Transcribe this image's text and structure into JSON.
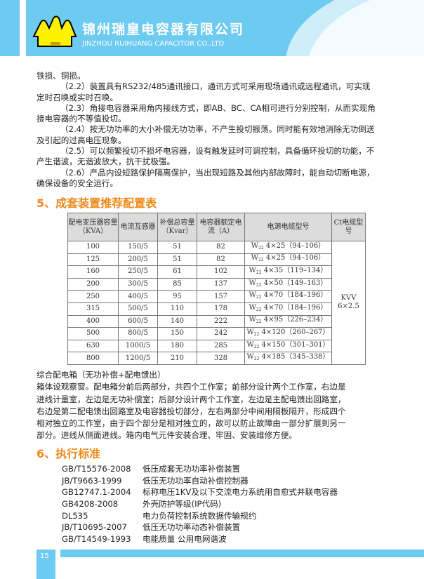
{
  "header": {
    "company_cn": "锦州瑞皇电容器有限公司",
    "company_en": "JINZHOU RUIHUANG CAPACITOR CO.,LTD",
    "brand_color": "#6dcbf1"
  },
  "intro": [
    "铁损、铜损。",
    "（2.2）装置具有RS232/485通讯接口，通讯方式可采用现场通讯或远程通讯，可实现",
    "定时召唤或实时召唤。",
    "（2.3）角接电容器采用角内接线方式，即AB、BC、CA相可进行分别控制，从而实现角",
    "接电容器的不等值投切。",
    "（2.4）按无功功率的大小补偿无功功率，不产生投切振荡。同时能有效地消除无功倒送",
    "及引起的过高电压现象。",
    "（2.5）可以频繁投切不损坏电容器，设有触发延时可调控制，具备循环投切的功能，不",
    "产生谐波，无谐波放大，抗干扰极强。",
    "（2.6）产品内设短路保护隔离保护，当出现短路及其他内部故障时，能自动切断电源，",
    "确保设备的安全运行。"
  ],
  "section5": {
    "title": "5、成套装置推荐配置表",
    "accent": "#f08a1c"
  },
  "table": {
    "headers": [
      "配电变压器容量（KVA）",
      "电流互感器",
      "补偿总容量（Kvar）",
      "电容器额定电流（A）",
      "电源电缆型号",
      "Ct电缆型号"
    ],
    "rows": [
      [
        "100",
        "150/5",
        "51",
        "82",
        "4×25（94–106）"
      ],
      [
        "125",
        "200/5",
        "51",
        "82",
        "4×25（94–106）"
      ],
      [
        "160",
        "250/5",
        "61",
        "102",
        "4×35（119–134）"
      ],
      [
        "200",
        "300/5",
        "85",
        "137",
        "4×50（149–163）"
      ],
      [
        "250",
        "400/5",
        "95",
        "157",
        "4×70（184–196）"
      ],
      [
        "315",
        "500/5",
        "110",
        "178",
        "4×70（184–196）"
      ],
      [
        "400",
        "600/5",
        "140",
        "222",
        "4×95（226–234）"
      ],
      [
        "500",
        "800/5",
        "150",
        "242",
        "4×120（260–267）"
      ],
      [
        "630",
        "1000/5",
        "180",
        "285",
        "4×150（301–301）"
      ],
      [
        "800",
        "1200/5",
        "210",
        "328",
        "4×185（345–338）"
      ]
    ],
    "cable_prefix": "W",
    "cable_sub": "22",
    "ct_cable": [
      "KVV",
      "6×2.5"
    ]
  },
  "cabinet": [
    "综合配电箱（无功补偿+配电馈出）",
    "箱体设观察窗。配电箱分前后两部分，共四个工作室；前部分设计两个工作室，右边是",
    "进线计量室，左边是无功补偿室；后部分设计两个工作室，左边是主配电馈出回路室，",
    "右边是第二配电馈出回路室及电容器投切部分，左右两部分中间用隔板隔开，形成四个",
    "相对独立的工作室，由于四个部分是相对独立的，故可以防止故障由一部分扩展到另一",
    "部分。进线从侧面进线。箱内电气元件安装合理、牢固、安装维修方便。"
  ],
  "section6": {
    "title": "6、执行标准"
  },
  "standards": [
    {
      "code": "GB/T15576-2008",
      "name": "低压成套无功功率补偿装置"
    },
    {
      "code": "JB/T9663-1999",
      "name": "低压无功功率自动补偿控制器"
    },
    {
      "code": "GB12747.1-2004",
      "name": "标称电压1KV及以下交流电力系统用自愈式并联电容器"
    },
    {
      "code": "GB4208-2008",
      "name": "外壳防护等级(IP代码)"
    },
    {
      "code": "DL535",
      "name": "电力负荷控制系统数据传输规约"
    },
    {
      "code": "JB/T10695-2007",
      "name": "低压无功功率动态补偿装置"
    },
    {
      "code": "GB/T14549-1993",
      "name": "电能质量 公用电网谐波"
    }
  ],
  "footer": {
    "page": "15"
  }
}
